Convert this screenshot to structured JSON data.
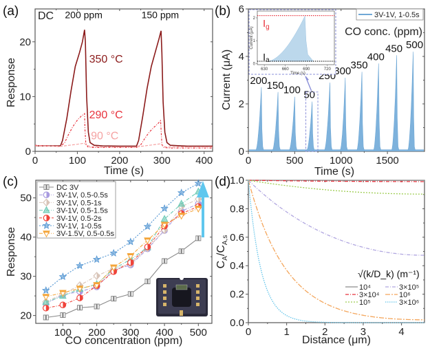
{
  "chart_data": [
    {
      "id": "a",
      "panel_label": "(a)",
      "type": "line",
      "title": "",
      "corner_label": "DC",
      "xlabel": "Time (s)",
      "ylabel": "Response",
      "xlim": [
        0,
        420
      ],
      "ylim": [
        0,
        26
      ],
      "xticks": [
        0,
        100,
        200,
        300,
        400
      ],
      "yticks": [
        0,
        10,
        20
      ],
      "annotations": [
        {
          "text": "200 ppm",
          "x": 115,
          "y": 24.3,
          "color": "#111111"
        },
        {
          "text": "150 ppm",
          "x": 296,
          "y": 24.3,
          "color": "#111111"
        },
        {
          "text": "350 °C",
          "x": 128,
          "y": 16.2,
          "color": "#8b1a1a"
        },
        {
          "text": "290 °C",
          "x": 128,
          "y": 6.0,
          "color": "#e8323c"
        },
        {
          "text": "90 °C",
          "x": 132,
          "y": 2.2,
          "color": "#f5a3a3"
        }
      ],
      "series": [
        {
          "name": "350 °C",
          "color": "#8b1a1a",
          "dash": "solid",
          "x": [
            0,
            60,
            65,
            75,
            85,
            95,
            105,
            112,
            117,
            119,
            122,
            126,
            130,
            140,
            160,
            200,
            240,
            245,
            255,
            265,
            275,
            285,
            293,
            298,
            300,
            303,
            307,
            312,
            320,
            360,
            420
          ],
          "y": [
            1.0,
            1.0,
            2.0,
            6.0,
            11.0,
            15.5,
            18.0,
            20.0,
            22.2,
            20.0,
            10.0,
            3.5,
            1.6,
            1.1,
            1.0,
            0.95,
            0.95,
            2.0,
            6.5,
            11.5,
            15.5,
            18.3,
            20.5,
            22.0,
            18.0,
            9.0,
            3.5,
            1.6,
            1.1,
            0.95,
            0.95
          ]
        },
        {
          "name": "290 °C",
          "color": "#e8323c",
          "dash": "3,2,1,2",
          "x": [
            0,
            60,
            70,
            80,
            90,
            100,
            110,
            117,
            118,
            120,
            125,
            135,
            160,
            200,
            240,
            250,
            260,
            270,
            280,
            290,
            297,
            298,
            300,
            305,
            320,
            360,
            420
          ],
          "y": [
            1.1,
            0.9,
            1.6,
            3.2,
            4.6,
            5.7,
            6.5,
            6.9,
            4.0,
            1.5,
            0.8,
            0.7,
            0.7,
            0.7,
            0.7,
            1.2,
            2.4,
            3.5,
            4.3,
            5.0,
            5.6,
            4.0,
            1.3,
            0.7,
            0.6,
            0.6,
            0.6
          ]
        },
        {
          "name": "90 °C",
          "color": "#f5a3a3",
          "dash": "4,2",
          "x": [
            0,
            60,
            80,
            100,
            117,
            120,
            130,
            160,
            240,
            260,
            280,
            298,
            301,
            310,
            360,
            420
          ],
          "y": [
            1.0,
            0.9,
            1.1,
            1.3,
            1.5,
            1.2,
            0.9,
            0.8,
            0.8,
            1.0,
            1.2,
            1.4,
            1.0,
            0.8,
            0.8,
            0.8
          ]
        }
      ]
    },
    {
      "id": "b",
      "panel_label": "(b)",
      "type": "area",
      "xlabel": "Time (s)",
      "ylabel": "Current (μA)",
      "xlim": [
        0,
        1900
      ],
      "ylim": [
        0,
        6
      ],
      "xticks": [
        0,
        500,
        1000,
        1500
      ],
      "yticks": [
        0,
        2,
        4,
        6
      ],
      "legend": {
        "label": "3V-1V, 1-0.5s",
        "color": "#6fa8d6",
        "placement": "top-right"
      },
      "subtitle": "CO conc. (ppm)",
      "series_color": "#7eb2dc",
      "baseline": 0.05,
      "peaks": [
        {
          "label": "200",
          "start": 80,
          "peak_t": 140,
          "end": 165,
          "peak": 2.7
        },
        {
          "label": "150",
          "start": 260,
          "peak_t": 320,
          "end": 345,
          "peak": 2.5
        },
        {
          "label": "100",
          "start": 440,
          "peak_t": 500,
          "end": 525,
          "peak": 2.3
        },
        {
          "label": "50",
          "start": 630,
          "peak_t": 688,
          "end": 712,
          "peak": 2.1
        },
        {
          "label": "250",
          "start": 820,
          "peak_t": 880,
          "end": 905,
          "peak": 2.9
        },
        {
          "label": "300",
          "start": 990,
          "peak_t": 1045,
          "end": 1070,
          "peak": 3.1
        },
        {
          "label": "350",
          "start": 1170,
          "peak_t": 1225,
          "end": 1250,
          "peak": 3.35
        },
        {
          "label": "400",
          "start": 1350,
          "peak_t": 1405,
          "end": 1430,
          "peak": 3.7
        },
        {
          "label": "450",
          "start": 1545,
          "peak_t": 1600,
          "end": 1625,
          "peak": 4.05
        },
        {
          "label": "500",
          "start": 1720,
          "peak_t": 1778,
          "end": 1800,
          "peak": 4.2
        }
      ],
      "inset": {
        "xlabel": "Time (s)",
        "ylabel": "Current (μA)",
        "xlim": [
          620,
          730
        ],
        "ylim": [
          -0.05,
          2.3
        ],
        "xticks": [
          630,
          660,
          690,
          720
        ],
        "yticks": [
          0,
          1,
          2
        ],
        "Ig_label": "I",
        "Ig_sub": "g",
        "Ia_label": "I",
        "Ia_sub": "a",
        "Ig_value": 2.1,
        "Ia_value": 0.1,
        "Ig_color": "#e8323c",
        "Ia_color": "#222222",
        "peak": {
          "start": 635,
          "peak_t": 688,
          "end": 700,
          "peak": 2.08
        }
      },
      "highlight_box": {
        "xlim": [
          620,
          750
        ],
        "ylim": [
          0,
          2.5
        ]
      }
    },
    {
      "id": "c",
      "panel_label": "(c)",
      "type": "line",
      "xlabel": "CO concentration (ppm)",
      "ylabel": "Response",
      "xlim": [
        20,
        540
      ],
      "ylim": [
        18,
        54.5
      ],
      "xticks": [
        100,
        200,
        300,
        400,
        500
      ],
      "yticks": [
        20,
        30,
        40,
        50
      ],
      "legend_placement": "top-left",
      "x": [
        50,
        100,
        150,
        200,
        250,
        300,
        350,
        400,
        450,
        500
      ],
      "series": [
        {
          "name": "DC 3V",
          "color": "#888888",
          "marker": "square",
          "dash": "solid",
          "values": [
            19.5,
            20.1,
            22.0,
            22.3,
            24.3,
            25.5,
            28.7,
            33.9,
            36.4,
            39.7
          ]
        },
        {
          "name": "3V-1V, 0.5-0.5s",
          "color": "#a99be0",
          "marker": "circle-half",
          "dash": "5,2,1,2",
          "values": [
            23.0,
            25.3,
            26.1,
            27.3,
            31.6,
            32.9,
            37.0,
            41.7,
            46.6,
            48.5
          ]
        },
        {
          "name": "3V-1V, 0.5-1s",
          "color": "#d8c4b8",
          "marker": "diamond",
          "dash": "5,2,1,2",
          "values": [
            23.5,
            25.5,
            27.7,
            30.1,
            32.0,
            33.2,
            37.2,
            41.8,
            47.8,
            49.7
          ]
        },
        {
          "name": "3V-1V, 0.5-1.5s",
          "color": "#6ccab5",
          "marker": "triangle",
          "dash": "5,2,1,2",
          "values": [
            23.4,
            25.0,
            26.8,
            28.0,
            31.9,
            34.3,
            37.4,
            44.6,
            48.5,
            51.6
          ]
        },
        {
          "name": "3V-1V, 0.5-2s",
          "color": "#f0433a",
          "marker": "circle-half",
          "dash": "4,2,1,2",
          "values": [
            21.9,
            22.7,
            24.5,
            27.6,
            31.2,
            33.5,
            37.5,
            42.8,
            46.0,
            47.8
          ]
        },
        {
          "name": "3V-1V, 1-0.5s",
          "color": "#4f93d1",
          "marker": "star",
          "dash": "2,2",
          "values": [
            26.4,
            29.9,
            32.7,
            34.3,
            35.9,
            38.8,
            42.7,
            47.3,
            51.3,
            53.7
          ]
        },
        {
          "name": "3V-1.5V, 0.5-0.5s",
          "color": "#f4a53a",
          "marker": "triangle-down",
          "dash": "5,2,1,2",
          "values": [
            24.8,
            25.8,
            26.9,
            27.8,
            32.3,
            35.2,
            39.2,
            43.2,
            45.5,
            47.3
          ]
        }
      ],
      "arrow_color": "#5fc7ee",
      "inset_image": "gas-sensor-chip-package"
    },
    {
      "id": "d",
      "panel_label": "(d)",
      "type": "line",
      "xlabel": "Distance (μm)",
      "ylabel_main": "C",
      "ylabel_sub1": "A",
      "ylabel_sep": "/C",
      "ylabel_sub2": "A,s",
      "xlim": [
        0,
        4.6
      ],
      "ylim": [
        0,
        1.0
      ],
      "xticks": [
        0,
        1,
        2,
        3,
        4
      ],
      "yticks": [
        0.0,
        0.2,
        0.4,
        0.6,
        0.8,
        1.0
      ],
      "legend_title": "√(k/D_k) (m⁻¹)",
      "legend_placement": "bottom-right",
      "layer_thickness_um": 4.6,
      "series": [
        {
          "name": "10⁴",
          "k_over_D_sqrt": 10000,
          "color": "#8a8a8a",
          "dash": "solid"
        },
        {
          "name": "3×10⁴",
          "k_over_D_sqrt": 30000,
          "color": "#e8323c",
          "dash": "5,2,1,2"
        },
        {
          "name": "10⁵",
          "k_over_D_sqrt": 100000,
          "color": "#9ccc4e",
          "dash": "2,2"
        },
        {
          "name": "3×10⁵",
          "k_over_D_sqrt": 300000,
          "color": "#b0a6e0",
          "dash": "5,2,1,2"
        },
        {
          "name": "10⁶",
          "k_over_D_sqrt": 1000000,
          "color": "#f4a55a",
          "dash": "7,2,2,2"
        },
        {
          "name": "3×10⁶",
          "k_over_D_sqrt": 3000000,
          "color": "#62c4ea",
          "dash": "1.5,1.5"
        }
      ]
    }
  ]
}
